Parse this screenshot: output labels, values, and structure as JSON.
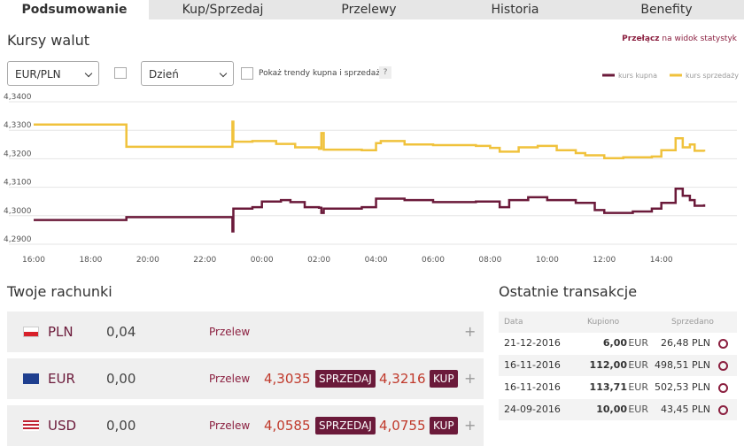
{
  "tabs": [
    "Podsumowanie",
    "Kup/Sprzedaj",
    "Przelewy",
    "Historia",
    "Benefity"
  ],
  "rates": {
    "title": "Kursy walut",
    "switch_link": "Przełącz",
    "switch_text": "na widok statystyk",
    "pair_select": "EUR/PLN",
    "period_select": "Dzień",
    "trend_checkbox": "Pokaż trendy kupna i sprzedaży",
    "help": "?"
  },
  "chart_data": {
    "type": "line",
    "step": true,
    "xlim": [
      "16:00",
      "15:30"
    ],
    "xticks": [
      "16:00",
      "18:00",
      "20:00",
      "22:00",
      "00:00",
      "02:00",
      "04:00",
      "06:00",
      "08:00",
      "10:00",
      "12:00",
      "14:00"
    ],
    "ylim": [
      4.29,
      4.34
    ],
    "yticks": [
      {
        "value": 4.29,
        "label": "4,2900"
      },
      {
        "value": 4.3,
        "label": "4,3000"
      },
      {
        "value": 4.31,
        "label": "4,3100"
      },
      {
        "value": 4.32,
        "label": "4,3200"
      },
      {
        "value": 4.33,
        "label": "4,3300"
      },
      {
        "value": 4.34,
        "label": "4,3400"
      }
    ],
    "grid": true,
    "legend": "top-right",
    "series": [
      {
        "name": "kurs kupna",
        "color": "#6b1a3a",
        "x": [
          "16:00",
          "19:15",
          "22:55",
          "22:58",
          "23:00",
          "23:40",
          "00:00",
          "00:40",
          "01:00",
          "01:30",
          "02:00",
          "02:05",
          "02:10",
          "03:30",
          "04:00",
          "05:00",
          "06:00",
          "07:30",
          "08:00",
          "08:20",
          "08:40",
          "09:20",
          "10:00",
          "11:00",
          "11:40",
          "12:00",
          "13:00",
          "13:40",
          "14:00",
          "14:30",
          "14:45",
          "15:00",
          "15:10",
          "15:30"
        ],
        "values": [
          4.2985,
          4.2995,
          4.2995,
          4.2945,
          4.3025,
          4.303,
          4.305,
          4.3055,
          4.3048,
          4.303,
          4.3028,
          4.301,
          4.3025,
          4.303,
          4.306,
          4.3055,
          4.3048,
          4.305,
          4.305,
          4.303,
          4.3055,
          4.3065,
          4.3055,
          4.3045,
          4.302,
          4.301,
          4.3015,
          4.3025,
          4.3045,
          4.3095,
          4.307,
          4.3055,
          4.3035,
          4.304
        ]
      },
      {
        "name": "kurs sprzedaży",
        "color": "#f0c23c",
        "x": [
          "16:00",
          "19:15",
          "22:55",
          "22:58",
          "23:00",
          "23:40",
          "00:30",
          "01:10",
          "02:00",
          "02:05",
          "02:10",
          "03:30",
          "04:00",
          "04:10",
          "05:00",
          "06:00",
          "07:30",
          "08:00",
          "08:20",
          "09:00",
          "09:40",
          "10:20",
          "11:00",
          "11:20",
          "12:00",
          "12:40",
          "13:00",
          "13:40",
          "14:00",
          "14:30",
          "14:45",
          "15:00",
          "15:10",
          "15:30"
        ],
        "values": [
          4.332,
          4.3242,
          4.3242,
          4.333,
          4.326,
          4.3262,
          4.3252,
          4.324,
          4.3235,
          4.329,
          4.3232,
          4.323,
          4.3255,
          4.3262,
          4.325,
          4.3248,
          4.3245,
          4.3238,
          4.3225,
          4.324,
          4.3245,
          4.323,
          4.322,
          4.3212,
          4.3202,
          4.3205,
          4.3205,
          4.3208,
          4.323,
          4.3272,
          4.324,
          4.325,
          4.3228,
          4.3225
        ]
      }
    ]
  },
  "accounts": {
    "title": "Twoje rachunki",
    "rows": [
      {
        "currency": "PLN",
        "balance": "0,04",
        "action": "Przelew",
        "plus": "+"
      },
      {
        "currency": "EUR",
        "balance": "0,00",
        "action": "Przelew",
        "sell": "4,3035",
        "sell_label": "SPRZEDAJ",
        "buy": "4,3216",
        "buy_label": "KUP",
        "plus": "+"
      },
      {
        "currency": "USD",
        "balance": "0,00",
        "action": "Przelew",
        "sell": "4,0585",
        "sell_label": "SPRZEDAJ",
        "buy": "4,0755",
        "buy_label": "KUP",
        "plus": "+"
      }
    ]
  },
  "transactions": {
    "title": "Ostatnie transakcje",
    "headers": [
      "Data",
      "Kupiono",
      "Sprzedano"
    ],
    "rows": [
      {
        "date": "21-12-2016",
        "bought": "6,00",
        "bought_currency": "EUR",
        "sold": "26,48 PLN"
      },
      {
        "date": "16-11-2016",
        "bought": "112,00",
        "bought_currency": "EUR",
        "sold": "498,51 PLN"
      },
      {
        "date": "16-11-2016",
        "bought": "113,71",
        "bought_currency": "EUR",
        "sold": "502,53 PLN"
      },
      {
        "date": "24-09-2016",
        "bought": "10,00",
        "bought_currency": "EUR",
        "sold": "43,45 PLN"
      }
    ]
  }
}
